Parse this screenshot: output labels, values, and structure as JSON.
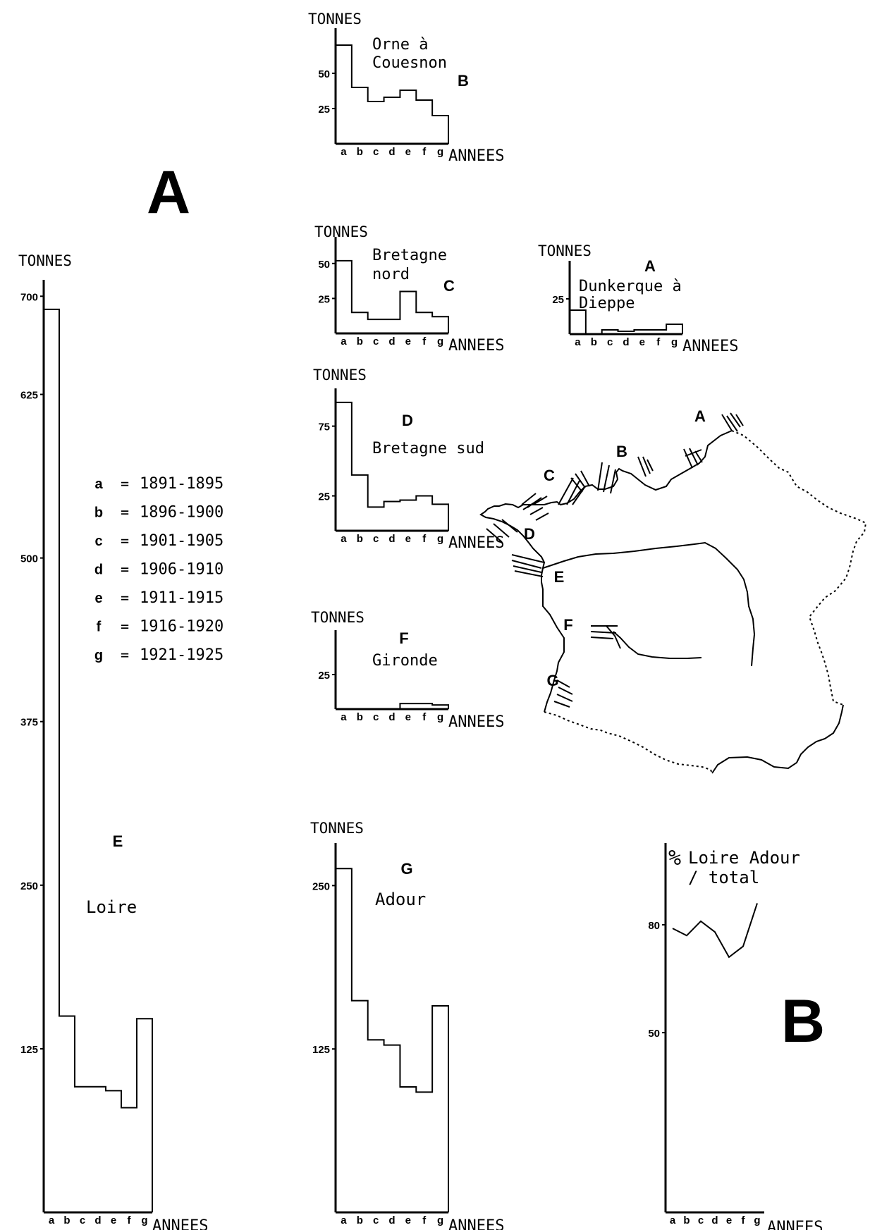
{
  "figure_letters": {
    "a": "A",
    "b": "B"
  },
  "legend": [
    {
      "key": "a",
      "eq": "=",
      "years": "1891-1895"
    },
    {
      "key": "b",
      "eq": "=",
      "years": "1896-1900"
    },
    {
      "key": "c",
      "eq": "=",
      "years": "1901-1905"
    },
    {
      "key": "d",
      "eq": "=",
      "years": "1906-1910"
    },
    {
      "key": "e",
      "eq": "=",
      "years": "1911-1915"
    },
    {
      "key": "f",
      "eq": "=",
      "years": "1916-1920"
    },
    {
      "key": "g",
      "eq": "=",
      "years": "1921-1925"
    }
  ],
  "map": {
    "labels": [
      "A",
      "B",
      "C",
      "D",
      "E",
      "F",
      "G"
    ]
  },
  "chart_data": [
    {
      "id": "orne",
      "type": "bar",
      "title": "Orne à Couesnon",
      "title_lines": [
        "Orne à",
        "Couesnon"
      ],
      "letter": "B",
      "ylabel": "TONNES",
      "xlabel": "ANNEES",
      "categories": [
        "a",
        "b",
        "c",
        "d",
        "e",
        "f",
        "g"
      ],
      "values": [
        70,
        40,
        30,
        33,
        38,
        31,
        20
      ],
      "yticks": [
        25,
        50
      ],
      "ylim": [
        0,
        75
      ]
    },
    {
      "id": "bretagne-nord",
      "type": "bar",
      "title": "Bretagne nord",
      "title_lines": [
        "Bretagne",
        "nord"
      ],
      "letter": "C",
      "ylabel": "TONNES",
      "xlabel": "ANNEES",
      "categories": [
        "a",
        "b",
        "c",
        "d",
        "e",
        "f",
        "g"
      ],
      "values": [
        52,
        15,
        10,
        10,
        30,
        15,
        12
      ],
      "yticks": [
        25,
        50
      ],
      "ylim": [
        0,
        62
      ]
    },
    {
      "id": "dunkerque",
      "type": "bar",
      "title": "Dunkerque à Dieppe",
      "title_lines": [
        "Dunkerque à",
        "Dieppe"
      ],
      "letter": "A",
      "ylabel": "TONNES",
      "xlabel": "ANNEES",
      "categories": [
        "a",
        "b",
        "c",
        "d",
        "e",
        "f",
        "g"
      ],
      "values": [
        17,
        0,
        3,
        2,
        3,
        3,
        7
      ],
      "yticks": [
        25
      ],
      "ylim": [
        0,
        45
      ]
    },
    {
      "id": "bretagne-sud",
      "type": "bar",
      "title": "Bretagne sud",
      "title_lines": [
        "Bretagne sud"
      ],
      "letter": "D",
      "ylabel": "TONNES",
      "xlabel": "ANNEES",
      "categories": [
        "a",
        "b",
        "c",
        "d",
        "e",
        "f",
        "g"
      ],
      "values": [
        92,
        40,
        17,
        21,
        22,
        25,
        19
      ],
      "yticks": [
        25,
        75
      ],
      "ylim": [
        0,
        95
      ]
    },
    {
      "id": "gironde",
      "type": "bar",
      "title": "Gironde",
      "title_lines": [
        "Gironde"
      ],
      "letter": "F",
      "ylabel": "TONNES",
      "xlabel": "ANNEES",
      "categories": [
        "a",
        "b",
        "c",
        "d",
        "e",
        "f",
        "g"
      ],
      "values": [
        0,
        0,
        0,
        0,
        4,
        4,
        3
      ],
      "yticks": [
        25
      ],
      "ylim": [
        0,
        50
      ]
    },
    {
      "id": "loire",
      "type": "bar",
      "title": "Loire",
      "title_lines": [
        "Loire"
      ],
      "letter": "E",
      "ylabel": "TONNES",
      "xlabel": "ANNEES",
      "categories": [
        "a",
        "b",
        "c",
        "d",
        "e",
        "f",
        "g"
      ],
      "values": [
        690,
        150,
        96,
        96,
        93,
        80,
        148
      ],
      "yticks": [
        125,
        250,
        375,
        500,
        625,
        700
      ],
      "ylim": [
        0,
        705
      ]
    },
    {
      "id": "adour",
      "type": "bar",
      "title": "Adour",
      "title_lines": [
        "Adour"
      ],
      "letter": "G",
      "ylabel": "TONNES",
      "xlabel": "ANNEES",
      "categories": [
        "a",
        "b",
        "c",
        "d",
        "e",
        "f",
        "g"
      ],
      "values": [
        263,
        162,
        132,
        128,
        96,
        92,
        158
      ],
      "yticks": [
        125,
        250
      ],
      "ylim": [
        0,
        275
      ]
    },
    {
      "id": "ratio",
      "type": "line",
      "title": "Loire Adour / total",
      "title_lines": [
        "Loire Adour",
        "/ total"
      ],
      "ylabel": "%",
      "xlabel": "ANNEES",
      "categories": [
        "a",
        "b",
        "c",
        "d",
        "e",
        "f",
        "g"
      ],
      "values": [
        79,
        77,
        81,
        78,
        71,
        74,
        86
      ],
      "yticks": [
        50,
        80
      ],
      "ylim": [
        0,
        100
      ]
    }
  ]
}
